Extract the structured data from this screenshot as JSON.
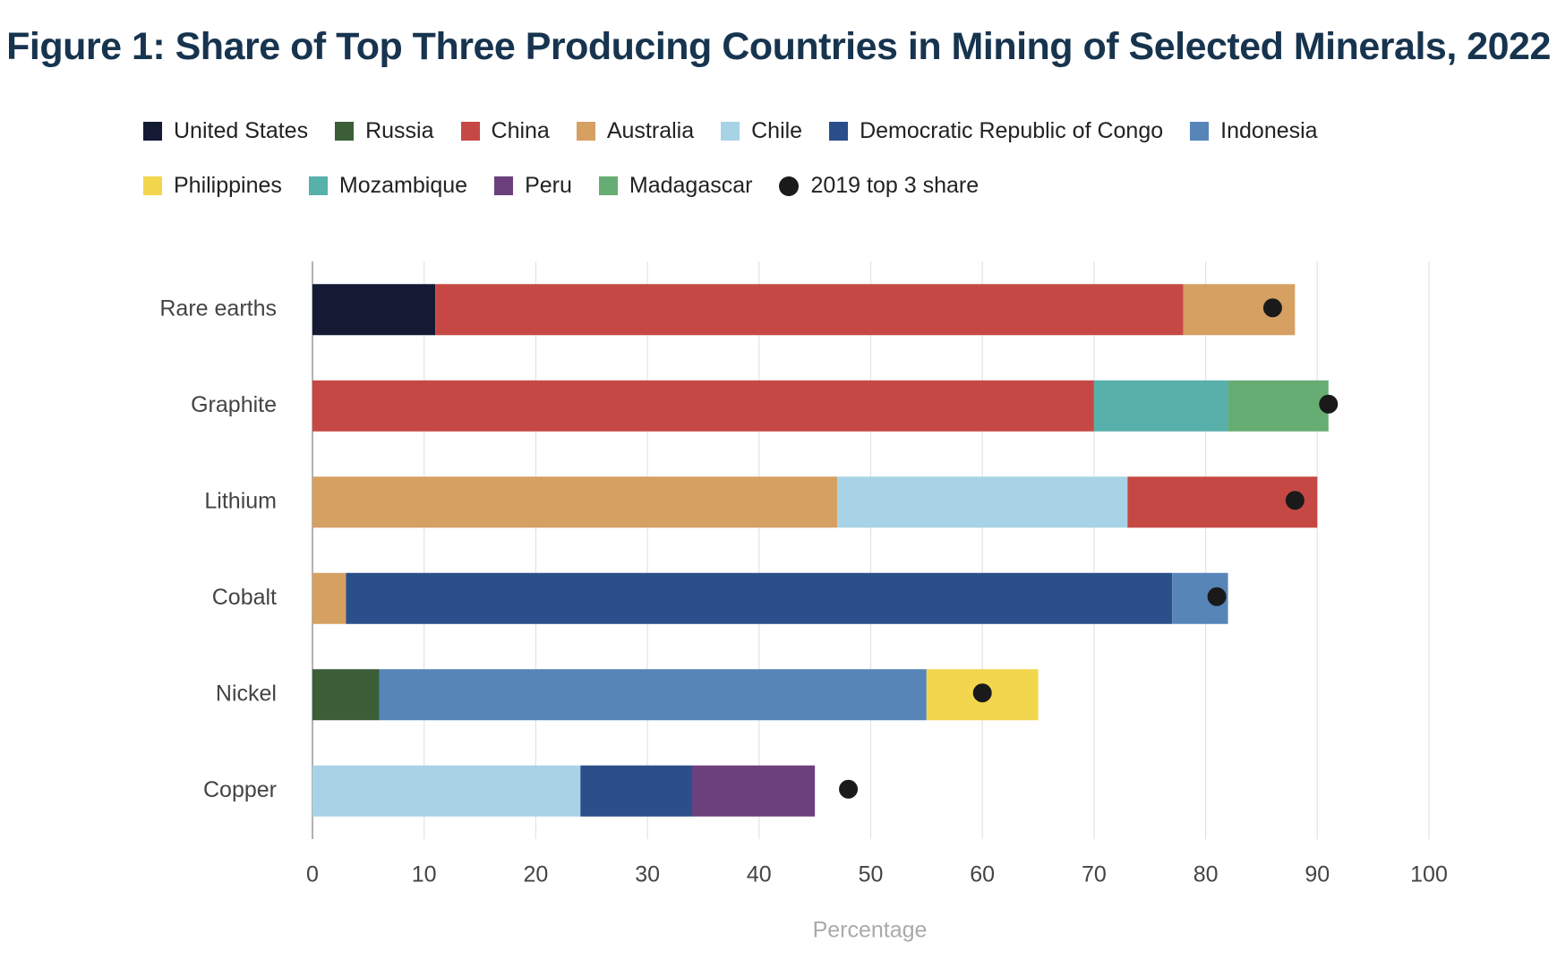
{
  "chart_data": {
    "type": "bar",
    "orientation": "horizontal",
    "stacked": true,
    "title": "Figure 1: Share of Top Three Producing Countries in Mining of Selected Minerals, 2022",
    "x_label": "Percentage",
    "xlim": [
      0,
      100
    ],
    "xticks": [
      0,
      10,
      20,
      30,
      40,
      50,
      60,
      70,
      80,
      90,
      100
    ],
    "grid": true,
    "legend": [
      {
        "name": "United States",
        "color": "#141a33"
      },
      {
        "name": "Russia",
        "color": "#3b5e36"
      },
      {
        "name": "China",
        "color": "#c64844"
      },
      {
        "name": "Australia",
        "color": "#d6a062"
      },
      {
        "name": "Chile",
        "color": "#a8d3e6"
      },
      {
        "name": "Democratic Republic of Congo",
        "color": "#2a4f8a"
      },
      {
        "name": "Indonesia",
        "color": "#5785b8"
      },
      {
        "name": "Philippines",
        "color": "#f2d64e"
      },
      {
        "name": "Mozambique",
        "color": "#58b0aa"
      },
      {
        "name": "Peru",
        "color": "#6b407c"
      },
      {
        "name": "Madagascar",
        "color": "#66ad74"
      }
    ],
    "marker_series": {
      "name": "2019 top 3 share",
      "color": "#1a1a1a"
    },
    "bars": [
      {
        "category": "Rare earths",
        "segments": [
          {
            "name": "United States",
            "value": 11
          },
          {
            "name": "China",
            "value": 67
          },
          {
            "name": "Australia",
            "value": 10
          }
        ],
        "top3_2019": 86
      },
      {
        "category": "Graphite",
        "segments": [
          {
            "name": "China",
            "value": 70
          },
          {
            "name": "Mozambique",
            "value": 12
          },
          {
            "name": "Madagascar",
            "value": 9
          }
        ],
        "top3_2019": 91
      },
      {
        "category": "Lithium",
        "segments": [
          {
            "name": "Australia",
            "value": 47
          },
          {
            "name": "Chile",
            "value": 26
          },
          {
            "name": "China",
            "value": 17
          }
        ],
        "top3_2019": 88
      },
      {
        "category": "Cobalt",
        "segments": [
          {
            "name": "Australia",
            "value": 3
          },
          {
            "name": "Democratic Republic of Congo",
            "value": 74
          },
          {
            "name": "Indonesia",
            "value": 5
          }
        ],
        "top3_2019": 81
      },
      {
        "category": "Nickel",
        "segments": [
          {
            "name": "Russia",
            "value": 6
          },
          {
            "name": "Indonesia",
            "value": 49
          },
          {
            "name": "Philippines",
            "value": 10
          }
        ],
        "top3_2019": 60
      },
      {
        "category": "Copper",
        "segments": [
          {
            "name": "Chile",
            "value": 24
          },
          {
            "name": "Democratic Republic of Congo",
            "value": 10
          },
          {
            "name": "Peru",
            "value": 11
          }
        ],
        "top3_2019": 48
      }
    ]
  }
}
